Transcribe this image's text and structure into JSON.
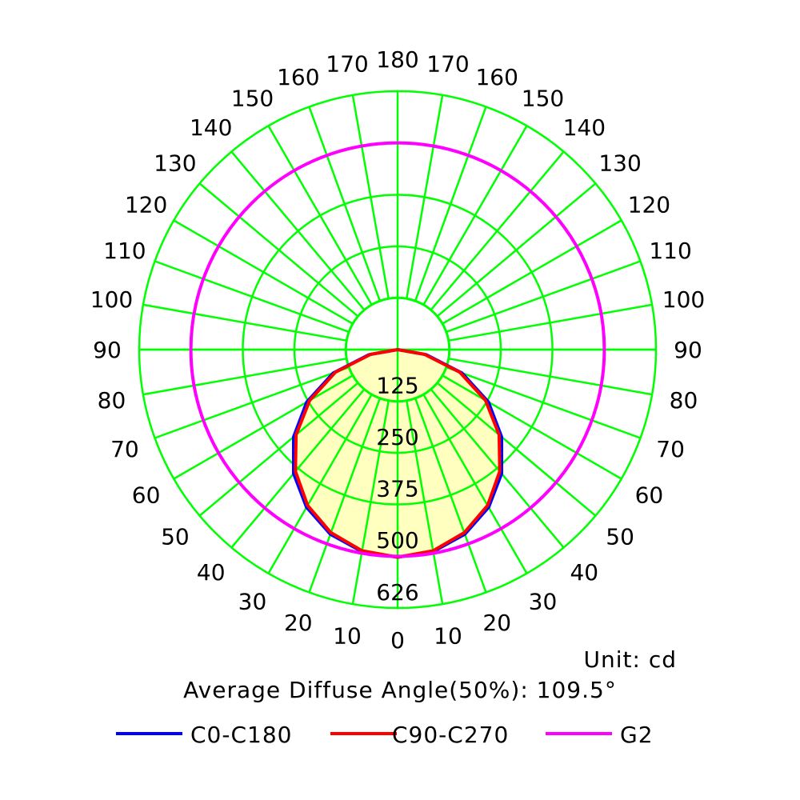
{
  "chart_data": {
    "type": "polar",
    "unit_label": "Unit: cd",
    "info_text": "Average Diffuse Angle(50%): 109.5°",
    "angle_labels_left": [
      "0",
      "10",
      "20",
      "30",
      "40",
      "50",
      "60",
      "70",
      "80",
      "90",
      "100",
      "110",
      "120",
      "130",
      "140",
      "150",
      "160",
      "170",
      "180"
    ],
    "angle_labels_right": [
      "10",
      "20",
      "30",
      "40",
      "50",
      "60",
      "70",
      "80",
      "90",
      "100",
      "110",
      "120",
      "130",
      "140",
      "150",
      "160",
      "170"
    ],
    "radial_labels": [
      "125",
      "250",
      "375",
      "500",
      "626"
    ],
    "rmax": 626,
    "rings": [
      125,
      250,
      375,
      500,
      626
    ],
    "angles_deg": [
      0,
      10,
      20,
      30,
      40,
      50,
      60,
      70,
      80,
      90,
      100,
      110,
      120,
      130,
      140,
      150,
      160,
      170,
      180
    ],
    "series": [
      {
        "name": "C0-C180",
        "color": "#0000ff",
        "values": [
          503,
          497,
          476,
          441,
          392,
          329,
          254,
          166,
          70,
          0,
          0,
          0,
          0,
          0,
          0,
          0,
          0,
          0,
          0
        ]
      },
      {
        "name": "C90-C270",
        "color": "#ff0000",
        "values": [
          503,
          495,
          472,
          436,
          385,
          321,
          246,
          160,
          66,
          0,
          0,
          0,
          0,
          0,
          0,
          0,
          0,
          0,
          0
        ]
      },
      {
        "name": "G2",
        "color": "#ff00ff",
        "values": [
          626,
          626,
          626,
          626,
          626,
          626,
          626,
          626,
          626,
          626,
          626,
          626,
          626,
          626,
          626,
          626,
          626,
          626,
          626
        ]
      }
    ],
    "fill_color": "#ffffc0",
    "grid_color": "#00ff00"
  },
  "legend": [
    {
      "label": "C0-C180",
      "color": "#0000ff"
    },
    {
      "label": "C90-C270",
      "color": "#ff0000"
    },
    {
      "label": "G2",
      "color": "#ff00ff"
    }
  ]
}
